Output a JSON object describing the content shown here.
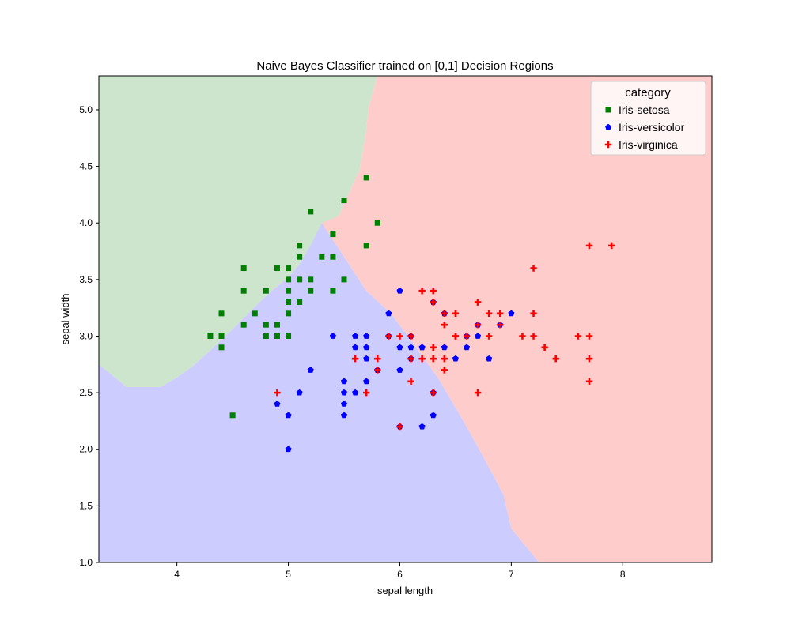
{
  "chart_data": {
    "type": "scatter",
    "title": "Naive Bayes Classifier trained on [0,1] Decision Regions",
    "xlabel": "sepal length",
    "ylabel": "sepal width",
    "xlim": [
      3.3,
      8.8
    ],
    "ylim": [
      1.0,
      5.3
    ],
    "xticks": [
      "4",
      "5",
      "6",
      "7",
      "8"
    ],
    "yticks": [
      "1.0",
      "1.5",
      "2.0",
      "2.5",
      "3.0",
      "3.5",
      "4.0",
      "4.5",
      "5.0"
    ],
    "grid": false,
    "legend": {
      "title": "category",
      "placement": "top-right"
    },
    "regions": [
      {
        "name": "Iris-setosa",
        "color": "#cde5cd",
        "polygon": [
          [
            3.3,
            5.3
          ],
          [
            5.8,
            5.3
          ],
          [
            5.72,
            5.02
          ],
          [
            5.69,
            4.75
          ],
          [
            5.64,
            4.47
          ],
          [
            5.45,
            4.06
          ],
          [
            5.21,
            3.76
          ],
          [
            5.09,
            3.62
          ],
          [
            4.99,
            3.51
          ],
          [
            4.85,
            3.4
          ],
          [
            4.71,
            3.27
          ],
          [
            4.55,
            3.11
          ],
          [
            4.34,
            2.91
          ],
          [
            4.15,
            2.74
          ],
          [
            3.98,
            2.62
          ],
          [
            3.85,
            2.55
          ],
          [
            3.55,
            2.55
          ],
          [
            3.3,
            2.75
          ]
        ]
      },
      {
        "name": "Iris-versicolor",
        "color": "#ccccff",
        "polygon": [
          [
            3.3,
            2.75
          ],
          [
            3.55,
            2.55
          ],
          [
            3.85,
            2.55
          ],
          [
            3.98,
            2.62
          ],
          [
            4.15,
            2.74
          ],
          [
            4.34,
            2.91
          ],
          [
            4.55,
            3.11
          ],
          [
            4.71,
            3.27
          ],
          [
            4.85,
            3.4
          ],
          [
            4.99,
            3.51
          ],
          [
            5.09,
            3.62
          ],
          [
            5.2,
            3.8
          ],
          [
            5.3,
            4.0
          ],
          [
            5.7,
            3.4
          ],
          [
            5.92,
            3.2
          ],
          [
            6.11,
            2.95
          ],
          [
            6.35,
            2.62
          ],
          [
            6.6,
            2.2
          ],
          [
            6.74,
            1.95
          ],
          [
            6.93,
            1.6
          ],
          [
            7.0,
            1.3
          ],
          [
            7.25,
            1.0
          ],
          [
            3.3,
            1.0
          ]
        ]
      },
      {
        "name": "Iris-virginica",
        "color": "#ffcccc",
        "polygon": [
          [
            5.8,
            5.3
          ],
          [
            8.8,
            5.3
          ],
          [
            8.8,
            1.0
          ],
          [
            7.25,
            1.0
          ],
          [
            7.0,
            1.3
          ],
          [
            6.93,
            1.6
          ],
          [
            6.74,
            1.95
          ],
          [
            6.6,
            2.2
          ],
          [
            6.35,
            2.62
          ],
          [
            6.11,
            2.95
          ],
          [
            5.92,
            3.2
          ],
          [
            5.7,
            3.4
          ],
          [
            5.3,
            4.0
          ],
          [
            5.45,
            4.06
          ],
          [
            5.64,
            4.47
          ],
          [
            5.69,
            4.75
          ],
          [
            5.72,
            5.02
          ]
        ]
      }
    ],
    "series": [
      {
        "name": "Iris-setosa",
        "marker": "square",
        "color": "#008000",
        "points": [
          [
            5.1,
            3.5
          ],
          [
            4.9,
            3.0
          ],
          [
            4.7,
            3.2
          ],
          [
            4.6,
            3.1
          ],
          [
            5.0,
            3.6
          ],
          [
            5.4,
            3.9
          ],
          [
            4.6,
            3.4
          ],
          [
            5.0,
            3.4
          ],
          [
            4.4,
            2.9
          ],
          [
            4.9,
            3.1
          ],
          [
            5.4,
            3.7
          ],
          [
            4.8,
            3.4
          ],
          [
            4.8,
            3.0
          ],
          [
            4.3,
            3.0
          ],
          [
            5.8,
            4.0
          ],
          [
            5.7,
            4.4
          ],
          [
            5.1,
            3.8
          ],
          [
            5.7,
            3.8
          ],
          [
            5.1,
            3.7
          ],
          [
            5.2,
            3.4
          ],
          [
            5.2,
            4.1
          ],
          [
            5.5,
            4.2
          ],
          [
            5.5,
            3.5
          ],
          [
            4.4,
            3.2
          ],
          [
            5.1,
            3.3
          ],
          [
            4.5,
            2.3
          ],
          [
            4.4,
            3.0
          ],
          [
            5.0,
            3.2
          ],
          [
            5.0,
            3.3
          ],
          [
            5.3,
            3.7
          ],
          [
            5.4,
            3.4
          ],
          [
            4.6,
            3.6
          ],
          [
            4.8,
            3.1
          ],
          [
            5.0,
            3.0
          ],
          [
            5.2,
            3.5
          ],
          [
            4.9,
            3.6
          ],
          [
            5.0,
            3.5
          ]
        ]
      },
      {
        "name": "Iris-versicolor",
        "marker": "pentagon",
        "color": "#0000ff",
        "points": [
          [
            7.0,
            3.2
          ],
          [
            6.4,
            3.2
          ],
          [
            6.9,
            3.1
          ],
          [
            5.5,
            2.3
          ],
          [
            6.5,
            2.8
          ],
          [
            5.7,
            2.8
          ],
          [
            6.3,
            3.3
          ],
          [
            4.9,
            2.4
          ],
          [
            6.6,
            2.9
          ],
          [
            5.2,
            2.7
          ],
          [
            5.0,
            2.0
          ],
          [
            5.9,
            3.0
          ],
          [
            6.0,
            2.2
          ],
          [
            6.1,
            2.9
          ],
          [
            5.6,
            2.9
          ],
          [
            6.7,
            3.1
          ],
          [
            5.6,
            3.0
          ],
          [
            5.8,
            2.7
          ],
          [
            6.2,
            2.2
          ],
          [
            5.6,
            2.5
          ],
          [
            5.9,
            3.2
          ],
          [
            6.1,
            2.8
          ],
          [
            6.3,
            2.5
          ],
          [
            6.6,
            3.0
          ],
          [
            6.8,
            2.8
          ],
          [
            6.0,
            2.9
          ],
          [
            5.7,
            2.6
          ],
          [
            5.5,
            2.4
          ],
          [
            5.8,
            2.7
          ],
          [
            6.0,
            2.7
          ],
          [
            5.4,
            3.0
          ],
          [
            6.0,
            3.4
          ],
          [
            6.3,
            2.3
          ],
          [
            5.5,
            2.5
          ],
          [
            5.5,
            2.6
          ],
          [
            5.0,
            2.3
          ],
          [
            5.7,
            2.9
          ],
          [
            6.2,
            2.9
          ],
          [
            5.1,
            2.5
          ],
          [
            5.7,
            3.0
          ],
          [
            6.7,
            3.0
          ],
          [
            6.4,
            2.9
          ],
          [
            6.2,
            2.9
          ],
          [
            6.1,
            3.0
          ]
        ]
      },
      {
        "name": "Iris-virginica",
        "marker": "plus",
        "color": "#ff0000",
        "points": [
          [
            6.3,
            3.3
          ],
          [
            5.8,
            2.7
          ],
          [
            7.1,
            3.0
          ],
          [
            6.3,
            2.9
          ],
          [
            6.5,
            3.0
          ],
          [
            7.6,
            3.0
          ],
          [
            4.9,
            2.5
          ],
          [
            7.3,
            2.9
          ],
          [
            6.7,
            2.5
          ],
          [
            7.2,
            3.6
          ],
          [
            6.5,
            3.2
          ],
          [
            6.4,
            2.7
          ],
          [
            6.8,
            3.0
          ],
          [
            5.7,
            2.5
          ],
          [
            5.8,
            2.8
          ],
          [
            6.4,
            3.2
          ],
          [
            7.7,
            3.8
          ],
          [
            7.7,
            2.6
          ],
          [
            6.0,
            2.2
          ],
          [
            6.9,
            3.2
          ],
          [
            5.6,
            2.8
          ],
          [
            7.7,
            2.8
          ],
          [
            6.7,
            3.3
          ],
          [
            7.2,
            3.2
          ],
          [
            6.2,
            2.8
          ],
          [
            6.1,
            3.0
          ],
          [
            6.4,
            2.8
          ],
          [
            7.2,
            3.0
          ],
          [
            7.4,
            2.8
          ],
          [
            7.9,
            3.8
          ],
          [
            6.1,
            2.6
          ],
          [
            7.7,
            3.0
          ],
          [
            6.3,
            3.4
          ],
          [
            6.4,
            3.1
          ],
          [
            6.0,
            3.0
          ],
          [
            6.9,
            3.1
          ],
          [
            6.7,
            3.1
          ],
          [
            6.8,
            3.2
          ],
          [
            6.7,
            3.3
          ],
          [
            6.5,
            3.0
          ],
          [
            6.2,
            3.4
          ],
          [
            5.9,
            3.0
          ],
          [
            6.3,
            2.8
          ],
          [
            6.9,
            3.2
          ],
          [
            6.3,
            2.5
          ],
          [
            6.6,
            3.0
          ],
          [
            6.1,
            2.8
          ]
        ]
      }
    ]
  }
}
